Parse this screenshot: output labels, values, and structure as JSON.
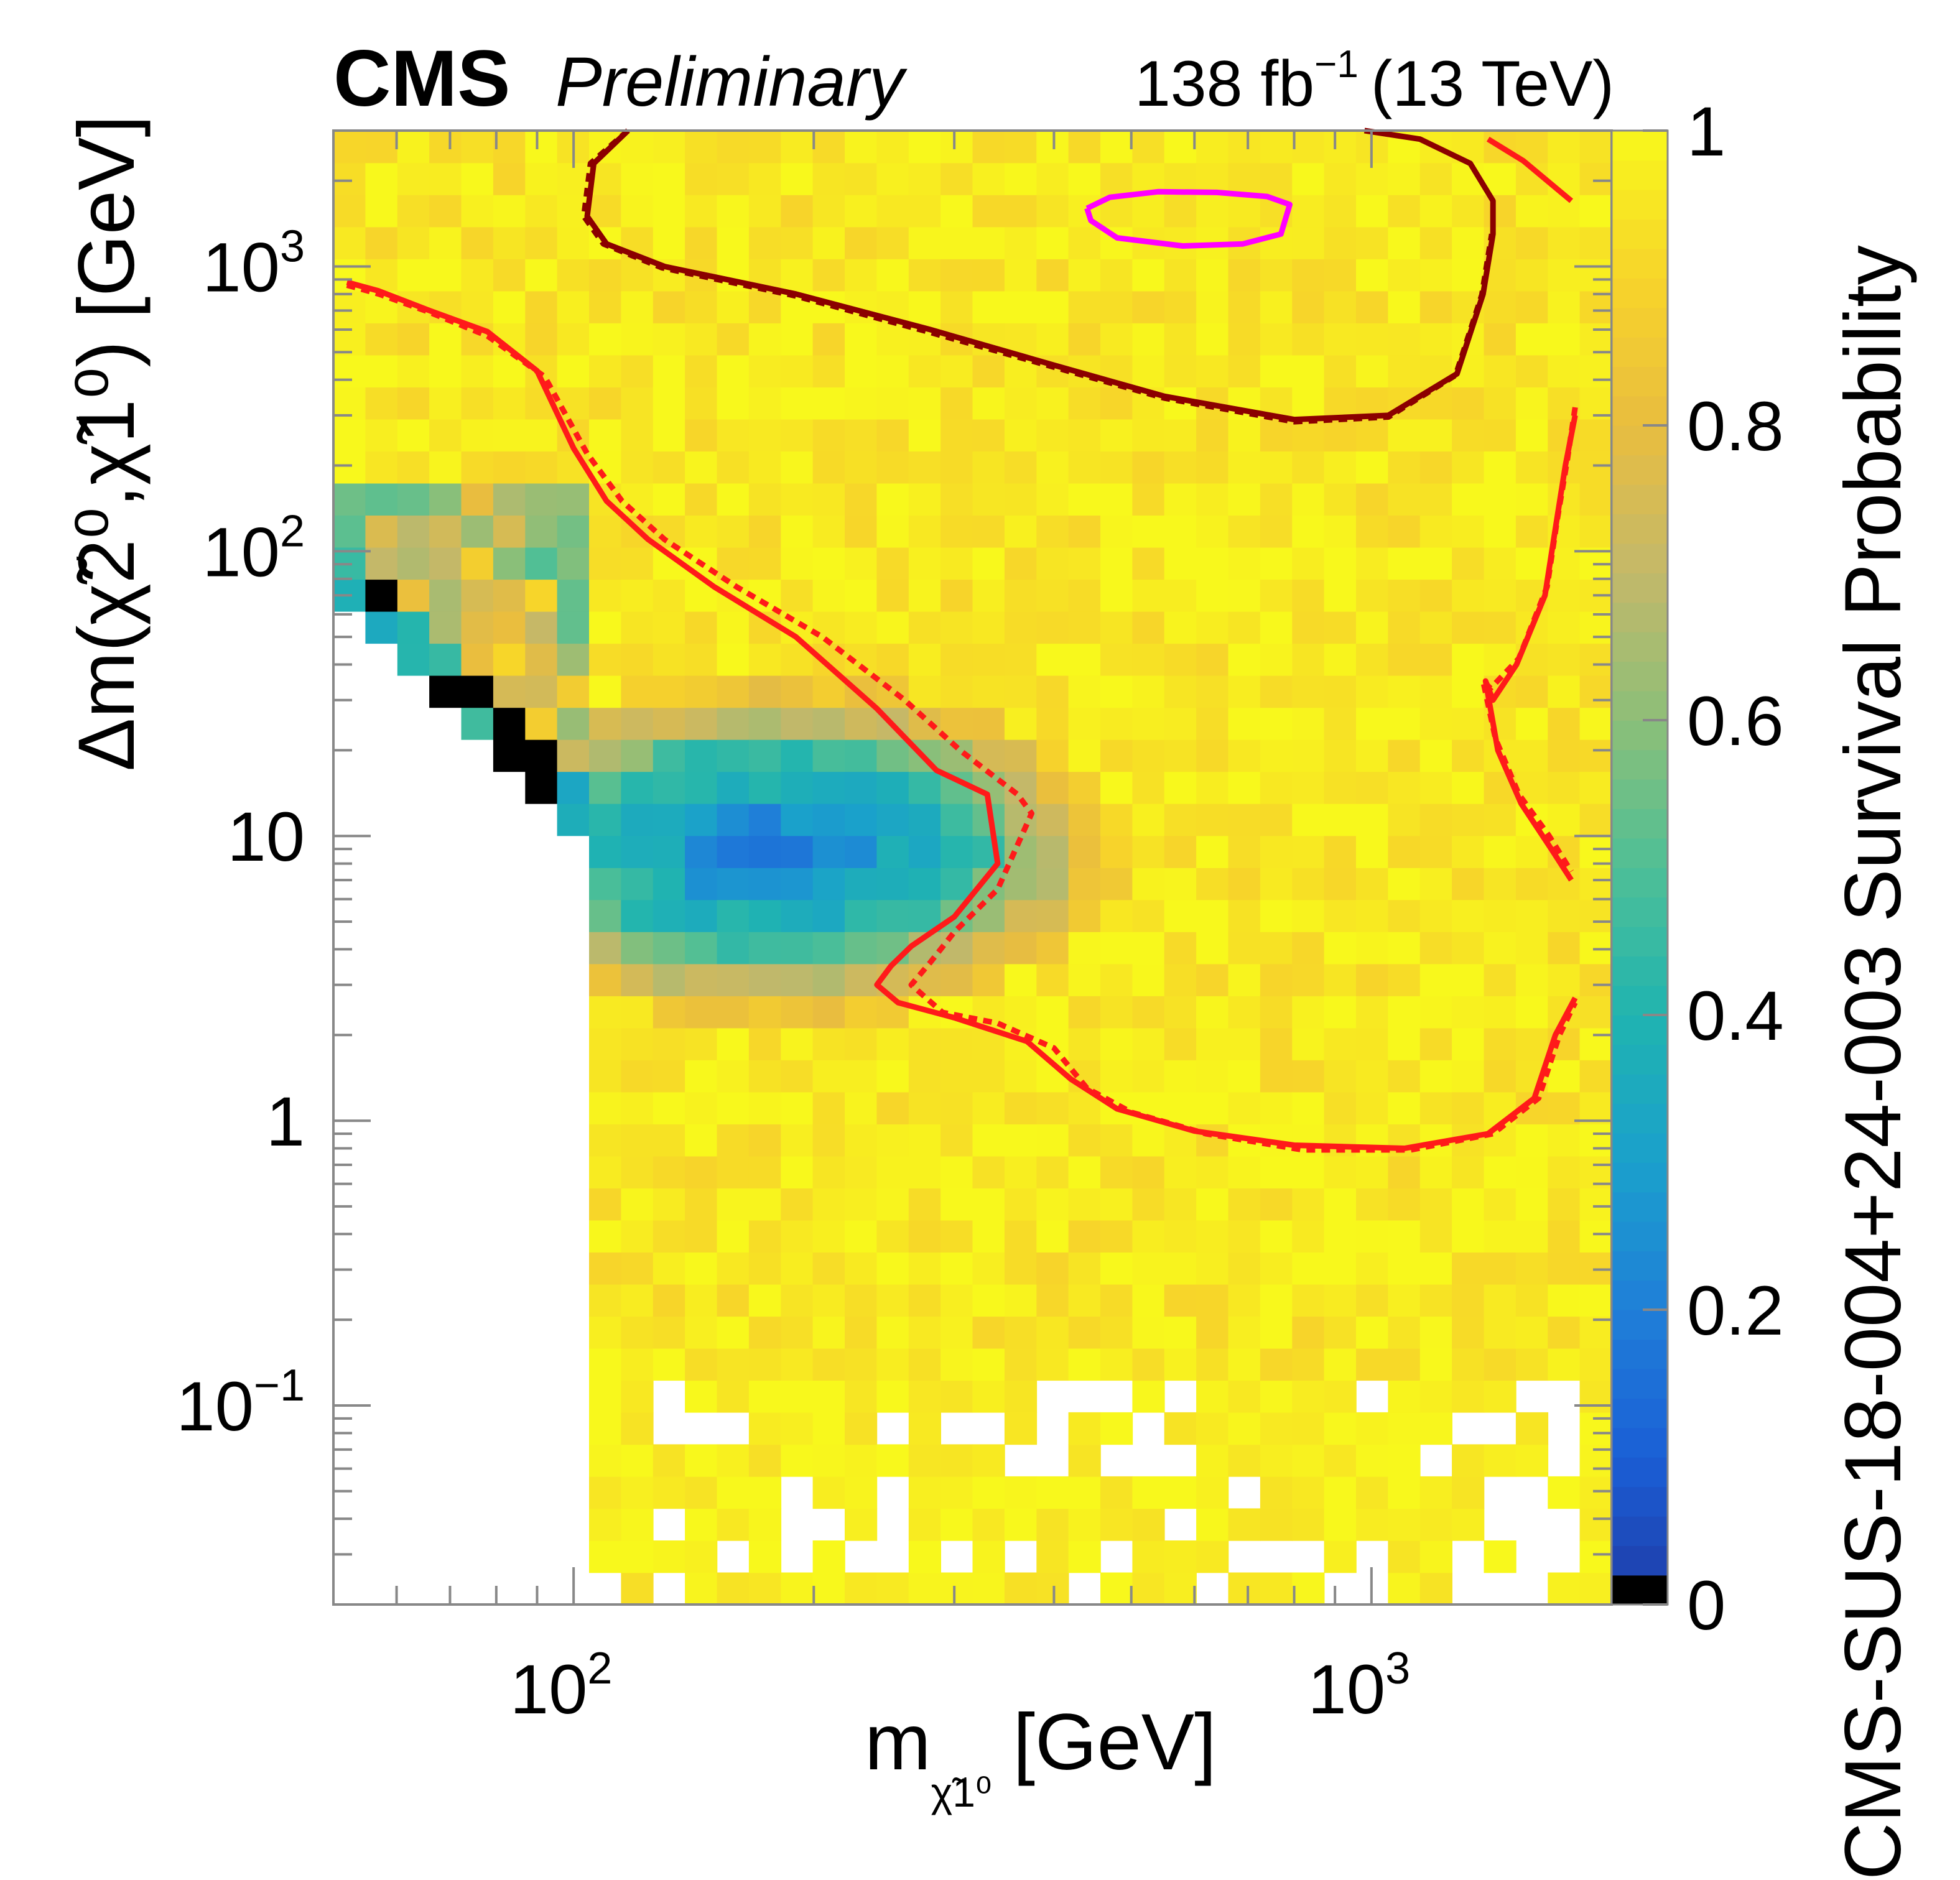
{
  "header": {
    "experiment": "CMS",
    "status": "Preliminary",
    "luminosity": "138 fb",
    "lumi_exponent": "−1",
    "energy": "(13 TeV)"
  },
  "chart_data": {
    "type": "heatmap",
    "xlabel": "m",
    "xlabel_subscript": "χ̃1⁰",
    "xlabel_unit": "[GeV]",
    "ylabel": "Δm(χ̃2⁰,χ̃1⁰) [GeV]",
    "zlabel": "CMS-SUS-18-004+24-003 Survival Probability",
    "x_scale": "log",
    "y_scale": "log",
    "xlim": [
      50,
      2000
    ],
    "ylim": [
      0.02,
      3000
    ],
    "zlim": [
      0,
      1
    ],
    "x_ticks": [
      {
        "value": 100,
        "label": "10",
        "sup": "2"
      },
      {
        "value": 1000,
        "label": "10",
        "sup": "3"
      }
    ],
    "y_ticks": [
      {
        "value": 0.1,
        "label": "10",
        "sup": "−1"
      },
      {
        "value": 1,
        "label": "1",
        "sup": ""
      },
      {
        "value": 10,
        "label": "10",
        "sup": ""
      },
      {
        "value": 100,
        "label": "10",
        "sup": "2"
      },
      {
        "value": 1000,
        "label": "10",
        "sup": "3"
      }
    ],
    "z_ticks": [
      {
        "value": 0,
        "label": "0"
      },
      {
        "value": 0.2,
        "label": "0.2"
      },
      {
        "value": 0.4,
        "label": "0.4"
      },
      {
        "value": 0.6,
        "label": "0.6"
      },
      {
        "value": 0.8,
        "label": "0.8"
      },
      {
        "value": 1,
        "label": "1"
      }
    ],
    "grid": false,
    "colormap": {
      "stops": [
        [
          0.0,
          "#1f3aa6"
        ],
        [
          0.1,
          "#1a5fd6"
        ],
        [
          0.2,
          "#1f7fd8"
        ],
        [
          0.3,
          "#1aa0cc"
        ],
        [
          0.4,
          "#20b4b0"
        ],
        [
          0.5,
          "#4fbf96"
        ],
        [
          0.6,
          "#8cbf78"
        ],
        [
          0.7,
          "#c3b86a"
        ],
        [
          0.8,
          "#e9bd3f"
        ],
        [
          0.9,
          "#f7d42a"
        ],
        [
          1.0,
          "#f8f81c"
        ]
      ],
      "zero_color": "#000000"
    },
    "contours": [
      {
        "style": "solid",
        "color": "#ff1a1a",
        "points": [
          [
            52,
            880
          ],
          [
            57,
            820
          ],
          [
            66,
            700
          ],
          [
            78,
            590
          ],
          [
            90,
            430
          ],
          [
            100,
            230
          ],
          [
            110,
            150
          ],
          [
            124,
            110
          ],
          [
            150,
            75
          ],
          [
            190,
            50
          ],
          [
            240,
            28
          ],
          [
            285,
            17
          ],
          [
            330,
            14
          ],
          [
            340,
            8
          ],
          [
            300,
            5.2
          ],
          [
            265,
            4.1
          ],
          [
            250,
            3.5
          ],
          [
            240,
            3
          ],
          [
            255,
            2.6
          ],
          [
            300,
            2.3
          ],
          [
            370,
            1.9
          ],
          [
            420,
            1.4
          ],
          [
            480,
            1.1
          ],
          [
            600,
            0.92
          ],
          [
            800,
            0.82
          ],
          [
            1100,
            0.8
          ],
          [
            1400,
            0.9
          ],
          [
            1600,
            1.2
          ],
          [
            1700,
            2
          ],
          [
            1800,
            2.7
          ]
        ]
      },
      {
        "style": "dotted",
        "color": "#ff1a1a",
        "points": [
          [
            52,
            860
          ],
          [
            57,
            800
          ],
          [
            66,
            690
          ],
          [
            78,
            570
          ],
          [
            92,
            410
          ],
          [
            104,
            220
          ],
          [
            115,
            150
          ],
          [
            130,
            110
          ],
          [
            160,
            75
          ],
          [
            205,
            50
          ],
          [
            260,
            30
          ],
          [
            305,
            20
          ],
          [
            360,
            14
          ],
          [
            375,
            12
          ],
          [
            340,
            6.5
          ],
          [
            300,
            4.6
          ],
          [
            280,
            3.6
          ],
          [
            265,
            3
          ],
          [
            290,
            2.4
          ],
          [
            340,
            2.2
          ],
          [
            400,
            1.8
          ],
          [
            440,
            1.3
          ],
          [
            500,
            1.07
          ],
          [
            620,
            0.9
          ],
          [
            820,
            0.79
          ],
          [
            1120,
            0.79
          ],
          [
            1420,
            0.9
          ],
          [
            1620,
            1.2
          ],
          [
            1720,
            2
          ],
          [
            1800,
            2.6
          ]
        ]
      },
      {
        "style": "solid",
        "color": "#ff1a1a",
        "points": [
          [
            1400,
            2800
          ],
          [
            1550,
            2350
          ],
          [
            1780,
            1700
          ]
        ]
      },
      {
        "style": "solid",
        "color": "#ff1a1a",
        "points": [
          [
            1800,
            300
          ],
          [
            1750,
            200
          ],
          [
            1700,
            120
          ],
          [
            1650,
            70
          ],
          [
            1520,
            40
          ],
          [
            1420,
            30
          ],
          [
            1390,
            35
          ],
          [
            1440,
            20
          ],
          [
            1540,
            13
          ],
          [
            1680,
            9
          ],
          [
            1780,
            7
          ]
        ]
      },
      {
        "style": "dotted",
        "color": "#ff1a1a",
        "points": [
          [
            1800,
            320
          ],
          [
            1760,
            210
          ],
          [
            1710,
            130
          ],
          [
            1660,
            75
          ],
          [
            1530,
            42
          ],
          [
            1410,
            33
          ],
          [
            1380,
            35
          ],
          [
            1430,
            22
          ],
          [
            1530,
            14
          ],
          [
            1670,
            10
          ],
          [
            1780,
            7.5
          ]
        ]
      },
      {
        "style": "solid",
        "color": "#8b0000",
        "points": [
          [
            117,
            3000
          ],
          [
            106,
            2300
          ],
          [
            104,
            1500
          ],
          [
            110,
            1200
          ],
          [
            130,
            1000
          ],
          [
            190,
            800
          ],
          [
            280,
            600
          ],
          [
            400,
            450
          ],
          [
            550,
            350
          ],
          [
            800,
            290
          ],
          [
            1050,
            300
          ],
          [
            1280,
            420
          ],
          [
            1380,
            800
          ],
          [
            1420,
            1300
          ],
          [
            1420,
            1700
          ],
          [
            1330,
            2300
          ],
          [
            1150,
            2800
          ],
          [
            980,
            3000
          ]
        ]
      },
      {
        "style": "dotted",
        "color": "#8b0000",
        "points": [
          [
            117,
            3000
          ],
          [
            105,
            2300
          ],
          [
            103,
            1500
          ],
          [
            109,
            1200
          ],
          [
            129,
            990
          ],
          [
            189,
            790
          ],
          [
            278,
            590
          ],
          [
            398,
            445
          ],
          [
            550,
            345
          ],
          [
            800,
            285
          ],
          [
            1050,
            296
          ],
          [
            1275,
            415
          ],
          [
            1375,
            795
          ],
          [
            1415,
            1300
          ]
        ]
      },
      {
        "style": "solid",
        "color": "#ff00ff",
        "points": [
          [
            440,
            1600
          ],
          [
            470,
            1750
          ],
          [
            540,
            1830
          ],
          [
            640,
            1820
          ],
          [
            740,
            1760
          ],
          [
            790,
            1650
          ],
          [
            770,
            1300
          ],
          [
            690,
            1200
          ],
          [
            580,
            1180
          ],
          [
            480,
            1260
          ],
          [
            445,
            1450
          ],
          [
            440,
            1600
          ]
        ]
      }
    ]
  }
}
